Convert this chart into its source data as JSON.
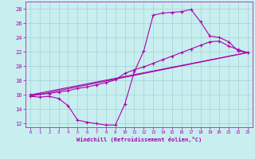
{
  "xlabel": "Windchill (Refroidissement éolien,°C)",
  "background_color": "#c8eef0",
  "grid_color": "#99cccc",
  "line_color": "#aa00aa",
  "xlim": [
    -0.5,
    23.5
  ],
  "ylim": [
    11.5,
    29
  ],
  "xticks": [
    0,
    1,
    2,
    3,
    4,
    5,
    6,
    7,
    8,
    9,
    10,
    11,
    12,
    13,
    14,
    15,
    16,
    17,
    18,
    19,
    20,
    21,
    22,
    23
  ],
  "yticks": [
    12,
    14,
    16,
    18,
    20,
    22,
    24,
    26,
    28
  ],
  "line1_x": [
    0,
    1,
    2,
    3,
    4,
    5,
    6,
    7,
    8,
    9,
    10,
    11,
    12,
    13,
    14,
    15,
    16,
    17,
    18,
    19,
    20,
    21,
    22,
    23
  ],
  "line1_y": [
    15.8,
    15.7,
    15.8,
    15.5,
    14.5,
    12.5,
    12.2,
    12.0,
    11.8,
    11.8,
    14.7,
    19.2,
    22.1,
    27.1,
    27.4,
    27.5,
    27.6,
    27.9,
    26.2,
    24.2,
    24.0,
    23.4,
    22.1,
    21.9
  ],
  "line2_x": [
    0,
    1,
    2,
    3,
    4,
    5,
    6,
    7,
    8,
    9,
    10,
    11,
    12,
    13,
    14,
    15,
    16,
    17,
    18,
    19,
    20,
    21,
    22,
    23
  ],
  "line2_y": [
    16.0,
    16.1,
    16.2,
    16.4,
    16.6,
    16.9,
    17.1,
    17.4,
    17.7,
    18.1,
    19.0,
    19.5,
    19.9,
    20.4,
    20.9,
    21.4,
    21.9,
    22.4,
    22.9,
    23.4,
    23.5,
    22.8,
    22.3,
    21.9
  ],
  "line3_x": [
    0,
    23
  ],
  "line3_y": [
    16.0,
    21.9
  ],
  "line4_x": [
    0,
    23
  ],
  "line4_y": [
    15.8,
    21.9
  ]
}
